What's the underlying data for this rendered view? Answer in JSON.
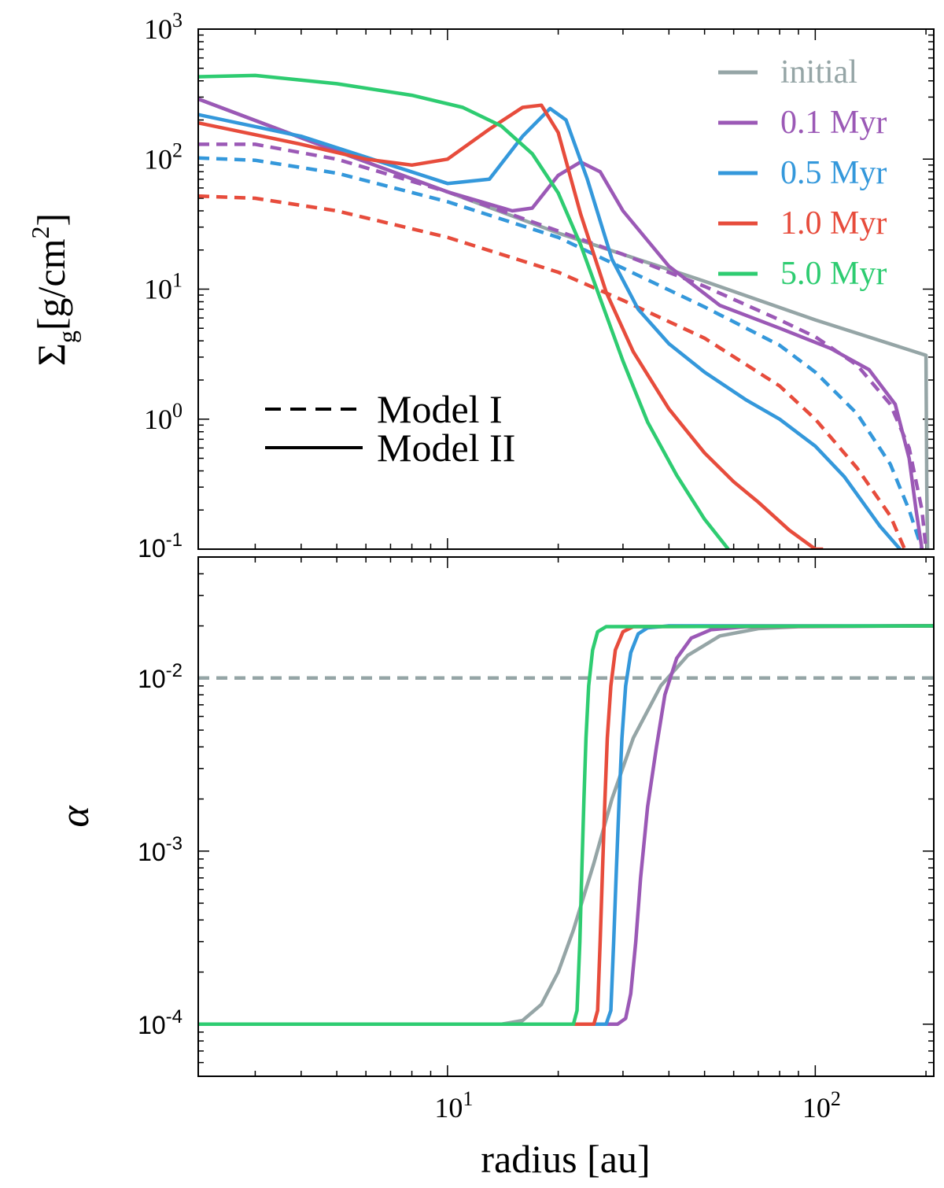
{
  "chart_data": [
    {
      "type": "line",
      "panel": "top",
      "ylabel": "Σg[g/cm²]",
      "ylabel_parts": {
        "symbol": "Σ",
        "sub": "g",
        "unit": "[g/cm",
        "sup": "2",
        "close": "]"
      },
      "xscale": "log",
      "yscale": "log",
      "xlim": [
        2.1,
        210
      ],
      "ylim": [
        0.1,
        1000
      ],
      "yticks": [
        {
          "base": "10",
          "exp": "3"
        },
        {
          "base": "10",
          "exp": "2"
        },
        {
          "base": "10",
          "exp": "1"
        },
        {
          "base": "10",
          "exp": "0"
        },
        {
          "base": "10",
          "exp": "-1"
        }
      ],
      "legend_position": "top-right",
      "legend": [
        {
          "label": "initial",
          "color": "#95a5a6"
        },
        {
          "label": "0.1 Myr",
          "color": "#9b59b6"
        },
        {
          "label": "0.5 Myr",
          "color": "#3498db"
        },
        {
          "label": "1.0 Myr",
          "color": "#e74c3c"
        },
        {
          "label": "5.0 Myr",
          "color": "#2ecc71"
        }
      ],
      "style_legend": [
        {
          "label": "Model I",
          "style": "dashed"
        },
        {
          "label": "Model II",
          "style": "solid"
        }
      ],
      "series": [
        {
          "name": "initial",
          "style": "solid",
          "color": "#95a5a6",
          "x": [
            2.1,
            5,
            10,
            20,
            50,
            100,
            200,
            201,
            202
          ],
          "y": [
            290,
            115,
            56,
            27,
            11.5,
            5.8,
            3.1,
            0.3,
            0.1
          ]
        },
        {
          "name": "0.1 Myr Model I",
          "style": "dashed",
          "color": "#9b59b6",
          "x": [
            2.1,
            3,
            5,
            10,
            20,
            30,
            50,
            80,
            100,
            130,
            160,
            180,
            195,
            200
          ],
          "y": [
            130,
            130,
            100,
            56,
            28,
            18.5,
            10.5,
            5.8,
            4.3,
            2.6,
            1.3,
            0.6,
            0.2,
            0.1
          ]
        },
        {
          "name": "0.5 Myr Model I",
          "style": "dashed",
          "color": "#3498db",
          "x": [
            2.1,
            3,
            5,
            10,
            20,
            30,
            50,
            80,
            100,
            130,
            160,
            180,
            195
          ],
          "y": [
            102,
            98,
            78,
            47,
            25,
            14.5,
            7.3,
            3.7,
            2.3,
            1.1,
            0.45,
            0.2,
            0.1
          ]
        },
        {
          "name": "1.0 Myr Model I",
          "style": "dashed",
          "color": "#e74c3c",
          "x": [
            2.1,
            3,
            5,
            10,
            20,
            30,
            50,
            80,
            100,
            130,
            160,
            175
          ],
          "y": [
            52,
            50,
            40,
            25,
            13.5,
            8.2,
            4.2,
            1.8,
            1.0,
            0.42,
            0.18,
            0.1
          ]
        },
        {
          "name": "0.1 Myr Model II",
          "style": "solid",
          "color": "#9b59b6",
          "x": [
            2.1,
            5,
            10,
            15,
            17,
            20,
            23,
            26,
            30,
            40,
            55,
            80,
            110,
            140,
            165,
            180,
            188,
            195
          ],
          "y": [
            290,
            115,
            56,
            40,
            42,
            75,
            95,
            80,
            40,
            15,
            7.5,
            5,
            3.5,
            2.4,
            1.3,
            0.5,
            0.2,
            0.1
          ]
        },
        {
          "name": "0.5 Myr Model II",
          "style": "solid",
          "color": "#3498db",
          "x": [
            2.1,
            4,
            7,
            10,
            13,
            16,
            19,
            21,
            24,
            28,
            33,
            40,
            50,
            65,
            80,
            100,
            120,
            150,
            170
          ],
          "y": [
            220,
            150,
            90,
            65,
            70,
            150,
            245,
            200,
            70,
            17,
            7,
            3.8,
            2.3,
            1.4,
            1.0,
            0.62,
            0.36,
            0.15,
            0.1
          ]
        },
        {
          "name": "1.0 Myr Model II",
          "style": "solid",
          "color": "#e74c3c",
          "x": [
            2.1,
            4,
            6,
            8,
            10,
            13,
            16,
            18,
            20,
            23,
            27,
            32,
            40,
            50,
            60,
            70,
            85,
            100,
            105
          ],
          "y": [
            190,
            130,
            100,
            90,
            100,
            170,
            250,
            260,
            160,
            38,
            9.5,
            3.3,
            1.2,
            0.55,
            0.33,
            0.23,
            0.14,
            0.1,
            0.1
          ]
        },
        {
          "name": "5.0 Myr Model II",
          "style": "solid",
          "color": "#2ecc71",
          "x": [
            2.1,
            3,
            5,
            8,
            11,
            14,
            17,
            20,
            23,
            26,
            30,
            35,
            42,
            50,
            58
          ],
          "y": [
            430,
            440,
            380,
            310,
            250,
            180,
            110,
            55,
            22,
            8.5,
            2.8,
            0.95,
            0.37,
            0.17,
            0.1
          ]
        }
      ]
    },
    {
      "type": "line",
      "panel": "bottom",
      "xlabel": "radius [au]",
      "ylabel": "α",
      "xscale": "log",
      "yscale": "log",
      "xlim": [
        2.1,
        210
      ],
      "ylim": [
        5e-05,
        0.05
      ],
      "xticks": [
        {
          "base": "10",
          "exp": "1"
        },
        {
          "base": "10",
          "exp": "2"
        }
      ],
      "yticks": [
        {
          "base": "10",
          "exp": "-2"
        },
        {
          "base": "10",
          "exp": "-3"
        },
        {
          "base": "10",
          "exp": "-4"
        }
      ],
      "series": [
        {
          "name": "Model I",
          "style": "dashed",
          "color": "#95a5a6",
          "x": [
            2.1,
            210
          ],
          "y": [
            0.01,
            0.01
          ]
        },
        {
          "name": "initial",
          "style": "solid",
          "color": "#95a5a6",
          "x": [
            2.1,
            14,
            16,
            18,
            20,
            22,
            25,
            28,
            32,
            38,
            45,
            55,
            70,
            90,
            210
          ],
          "y": [
            0.0001,
            0.0001,
            0.000105,
            0.00013,
            0.0002,
            0.00035,
            0.00085,
            0.002,
            0.0045,
            0.009,
            0.0135,
            0.0175,
            0.0193,
            0.0198,
            0.02
          ]
        },
        {
          "name": "0.1 Myr",
          "style": "solid",
          "color": "#9b59b6",
          "x": [
            2.1,
            29,
            30.5,
            31.5,
            32.5,
            33.5,
            35,
            37,
            39,
            42,
            46,
            52,
            65,
            210
          ],
          "y": [
            0.0001,
            0.0001,
            0.000108,
            0.00015,
            0.0003,
            0.0007,
            0.0018,
            0.004,
            0.008,
            0.013,
            0.017,
            0.019,
            0.0198,
            0.02
          ]
        },
        {
          "name": "0.5 Myr",
          "style": "solid",
          "color": "#3498db",
          "x": [
            2.1,
            27,
            27.8,
            28.3,
            28.8,
            29.3,
            29.8,
            30.5,
            31.5,
            33,
            35,
            40,
            210
          ],
          "y": [
            0.0001,
            0.0001,
            0.00012,
            0.0003,
            0.0008,
            0.002,
            0.0045,
            0.009,
            0.014,
            0.018,
            0.0195,
            0.02,
            0.02
          ]
        },
        {
          "name": "1.0 Myr",
          "style": "solid",
          "color": "#e74c3c",
          "x": [
            2.1,
            25,
            25.6,
            26,
            26.4,
            26.8,
            27.2,
            27.8,
            28.6,
            30,
            32,
            210
          ],
          "y": [
            0.0001,
            0.0001,
            0.00012,
            0.0003,
            0.0008,
            0.002,
            0.0045,
            0.009,
            0.0145,
            0.0185,
            0.0198,
            0.02
          ]
        },
        {
          "name": "5.0 Myr",
          "style": "solid",
          "color": "#2ecc71",
          "x": [
            2.1,
            22,
            22.5,
            22.9,
            23.2,
            23.5,
            23.8,
            24.2,
            24.8,
            25.6,
            27,
            210
          ],
          "y": [
            0.0001,
            0.0001,
            0.00012,
            0.0003,
            0.0008,
            0.002,
            0.0045,
            0.009,
            0.0145,
            0.0185,
            0.0198,
            0.02
          ]
        }
      ]
    }
  ]
}
